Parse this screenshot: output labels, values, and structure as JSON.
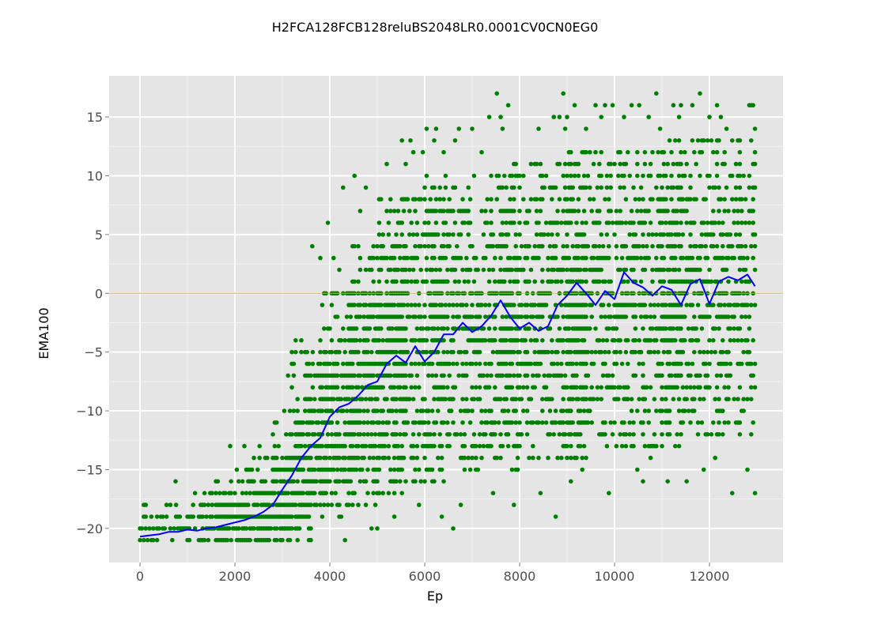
{
  "chart_data": {
    "type": "scatter",
    "title": "H2FCA128FCB128reluBS2048LR0.0001CV0CN0EG0",
    "xlabel": "Ep",
    "ylabel": "EMA100",
    "xlim": [
      -650,
      13550
    ],
    "ylim": [
      -22.9,
      18.5
    ],
    "x_ticks": [
      0,
      2000,
      4000,
      6000,
      8000,
      10000,
      12000
    ],
    "y_ticks": [
      -20,
      -15,
      -10,
      -5,
      0,
      5,
      10,
      15
    ],
    "grid": true,
    "reference_line": {
      "y": 0,
      "color": "#ffa500"
    },
    "colors": {
      "points": "#008000",
      "ema": "#0000ff",
      "panel": "#e5e5e5",
      "grid": "#ffffff"
    },
    "series": [
      {
        "kind": "scatter",
        "note_density": "score samples every 40 episodes; estimated score bands",
        "bands": [
          {
            "x": [
              0,
              3200
            ],
            "ymin": -21,
            "ymax": -18
          },
          {
            "x": [
              1000,
              3200
            ],
            "ymin": -21,
            "ymax": -17
          },
          {
            "x": [
              1600,
              3200
            ],
            "ymin": -21,
            "ymax": -16
          },
          {
            "x": [
              2200,
              3600
            ],
            "ymin": -21,
            "ymax": -14
          },
          {
            "x": [
              2800,
              4000
            ],
            "ymin": -20,
            "ymax": -10
          },
          {
            "x": [
              3200,
              4400
            ],
            "ymin": -19,
            "ymax": -5
          },
          {
            "x": [
              3800,
              5000
            ],
            "ymin": -18,
            "ymax": 0
          },
          {
            "x": [
              4400,
              5600
            ],
            "ymin": -17,
            "ymax": 4
          },
          {
            "x": [
              5000,
              6400
            ],
            "ymin": -16,
            "ymax": 8
          },
          {
            "x": [
              6000,
              8000
            ],
            "ymin": -15,
            "ymax": 10
          },
          {
            "x": [
              7600,
              9400
            ],
            "ymin": -14,
            "ymax": 11
          },
          {
            "x": [
              9000,
              11400
            ],
            "ymin": -13,
            "ymax": 12
          },
          {
            "x": [
              11000,
              12960
            ],
            "ymin": -12,
            "ymax": 13
          }
        ],
        "outliers": [
          [
            0,
            -21
          ],
          [
            40,
            -20
          ],
          [
            80,
            -19
          ],
          [
            750,
            -16
          ],
          [
            1600,
            -16
          ],
          [
            1900,
            -13
          ],
          [
            2040,
            -15
          ],
          [
            2200,
            -13
          ],
          [
            2400,
            -14
          ],
          [
            2520,
            -13
          ],
          [
            3120,
            -7
          ],
          [
            3280,
            -4
          ],
          [
            3400,
            -4
          ],
          [
            3630,
            4
          ],
          [
            3800,
            3
          ],
          [
            3960,
            6
          ],
          [
            4080,
            3
          ],
          [
            4200,
            2
          ],
          [
            4280,
            9
          ],
          [
            4320,
            -21
          ],
          [
            4440,
            -2
          ],
          [
            4520,
            10
          ],
          [
            4640,
            7
          ],
          [
            4760,
            9
          ],
          [
            4840,
            2
          ],
          [
            4880,
            -20
          ],
          [
            5000,
            -20
          ],
          [
            5040,
            6
          ],
          [
            5200,
            11
          ],
          [
            5360,
            -19
          ],
          [
            5520,
            13
          ],
          [
            5600,
            11
          ],
          [
            5700,
            13
          ],
          [
            5760,
            12
          ],
          [
            5880,
            -18
          ],
          [
            5960,
            12
          ],
          [
            6040,
            14
          ],
          [
            6200,
            13
          ],
          [
            6240,
            14
          ],
          [
            6360,
            -19
          ],
          [
            6400,
            12
          ],
          [
            6600,
            -20
          ],
          [
            6640,
            13
          ],
          [
            6720,
            14
          ],
          [
            6760,
            -18
          ],
          [
            7000,
            14
          ],
          [
            7200,
            12
          ],
          [
            7360,
            15
          ],
          [
            7440,
            -17
          ],
          [
            7520,
            17
          ],
          [
            7600,
            15
          ],
          [
            7640,
            14
          ],
          [
            7760,
            16
          ],
          [
            7880,
            -18
          ],
          [
            7920,
            11
          ],
          [
            8400,
            14
          ],
          [
            8440,
            -17
          ],
          [
            8720,
            15
          ],
          [
            8760,
            -19
          ],
          [
            8840,
            15
          ],
          [
            8920,
            17
          ],
          [
            8960,
            14
          ],
          [
            9000,
            15
          ],
          [
            9080,
            -16
          ],
          [
            9160,
            16
          ],
          [
            9320,
            -15
          ],
          [
            9400,
            14
          ],
          [
            9600,
            16
          ],
          [
            9720,
            15
          ],
          [
            9800,
            16
          ],
          [
            9880,
            -17
          ],
          [
            9960,
            16
          ],
          [
            10200,
            15
          ],
          [
            10360,
            16
          ],
          [
            10480,
            -15
          ],
          [
            10520,
            16
          ],
          [
            10600,
            -16
          ],
          [
            10720,
            15
          ],
          [
            10760,
            -14
          ],
          [
            10880,
            17
          ],
          [
            10960,
            14
          ],
          [
            11120,
            -16
          ],
          [
            11240,
            16
          ],
          [
            11360,
            15
          ],
          [
            11400,
            16
          ],
          [
            11520,
            -16
          ],
          [
            11640,
            16
          ],
          [
            11800,
            17
          ],
          [
            11880,
            -15
          ],
          [
            12000,
            15
          ],
          [
            12120,
            -14
          ],
          [
            12160,
            16
          ],
          [
            12240,
            15
          ],
          [
            12360,
            14
          ],
          [
            12480,
            -17
          ],
          [
            12600,
            13
          ],
          [
            12800,
            -15
          ],
          [
            12840,
            16
          ],
          [
            12880,
            16
          ],
          [
            12920,
            16
          ],
          [
            12960,
            -17
          ],
          [
            12960,
            14
          ]
        ]
      },
      {
        "kind": "line",
        "x": [
          0,
          200,
          400,
          600,
          800,
          1000,
          1200,
          1400,
          1600,
          1800,
          2000,
          2200,
          2400,
          2600,
          2800,
          3000,
          3200,
          3400,
          3600,
          3800,
          4000,
          4200,
          4400,
          4600,
          4800,
          5000,
          5200,
          5400,
          5600,
          5800,
          6000,
          6200,
          6400,
          6600,
          6800,
          7000,
          7200,
          7400,
          7600,
          7800,
          8000,
          8200,
          8400,
          8600,
          8800,
          9000,
          9200,
          9400,
          9600,
          9800,
          10000,
          10200,
          10400,
          10600,
          10800,
          11000,
          11200,
          11400,
          11600,
          11800,
          12000,
          12200,
          12400,
          12600,
          12800,
          12960
        ],
        "y": [
          -20.7,
          -20.6,
          -20.5,
          -20.3,
          -20.3,
          -20.1,
          -20.2,
          -20.0,
          -19.9,
          -19.7,
          -19.5,
          -19.3,
          -19.0,
          -18.6,
          -18.0,
          -16.7,
          -15.5,
          -14.0,
          -13.0,
          -12.3,
          -10.5,
          -9.7,
          -9.4,
          -8.7,
          -7.8,
          -7.5,
          -6.0,
          -5.3,
          -5.9,
          -4.5,
          -5.8,
          -5.0,
          -3.5,
          -3.5,
          -2.5,
          -3.3,
          -2.8,
          -1.9,
          -0.6,
          -2.0,
          -3.0,
          -2.5,
          -3.2,
          -2.8,
          -1.0,
          -0.2,
          0.9,
          0.0,
          -1.0,
          0.2,
          -0.5,
          1.8,
          0.9,
          0.5,
          -0.2,
          0.6,
          0.3,
          -1.0,
          0.8,
          1.2,
          -0.9,
          1.0,
          1.4,
          1.1,
          1.6,
          0.6
        ]
      }
    ]
  }
}
